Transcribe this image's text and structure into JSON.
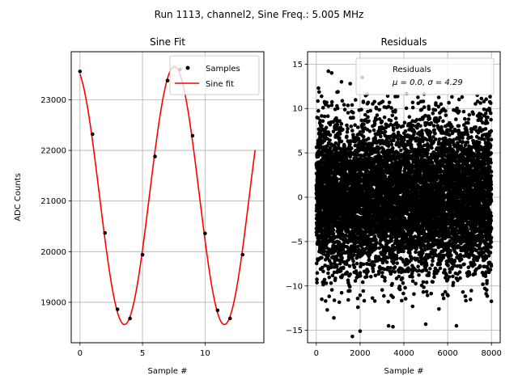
{
  "suptitle": "Run 1113, channel2, Sine Freq.: 5.005 MHz",
  "chart_data": [
    {
      "type": "scatter+line",
      "title": "Sine Fit",
      "xlabel": "Sample #",
      "ylabel": "ADC Counts",
      "xlim": [
        -0.7,
        14.7
      ],
      "ylim": [
        18200,
        23950
      ],
      "xticks": [
        0,
        5,
        10
      ],
      "yticks": [
        19000,
        20000,
        21000,
        22000,
        23000
      ],
      "grid": true,
      "legend_position": "top-right",
      "series": [
        {
          "name": "Samples",
          "kind": "scatter",
          "color": "#000000",
          "x": [
            0,
            1,
            2,
            3,
            4,
            5,
            6,
            7,
            8,
            9,
            10,
            11,
            12,
            13
          ],
          "y": [
            23560,
            22320,
            20370,
            18860,
            18680,
            19940,
            21880,
            23380,
            23600,
            22290,
            20360,
            18840,
            18680,
            19940
          ]
        },
        {
          "name": "Sine fit",
          "kind": "line",
          "color": "#ff0000",
          "model": {
            "offset": 21110,
            "amplitude": 2550,
            "period_samples": 7.99,
            "peak_at_sample": 7.55,
            "x_range": [
              0,
              14
            ]
          }
        }
      ]
    },
    {
      "type": "scatter",
      "title": "Residuals",
      "xlabel": "Sample #",
      "ylabel": "",
      "xlim": [
        -400,
        8400
      ],
      "ylim": [
        -16.4,
        16.4
      ],
      "xticks": [
        0,
        2000,
        4000,
        6000,
        8000
      ],
      "yticks": [
        -15,
        -10,
        -5,
        0,
        5,
        10,
        15
      ],
      "grid": true,
      "legend_position": "top-right",
      "legend_line1": "Residuals",
      "legend_line2": "μ = 0.0, σ = 4.29",
      "series": [
        {
          "name": "Residuals",
          "color": "#000000",
          "n_points": 8000,
          "x_range": [
            0,
            7999
          ],
          "mean": 0.0,
          "sigma": 4.29,
          "outliers": [
            {
              "x": 550,
              "y": 14.2
            },
            {
              "x": 700,
              "y": 14.0
            },
            {
              "x": 2100,
              "y": 13.5
            },
            {
              "x": 1150,
              "y": 13.0
            },
            {
              "x": 1550,
              "y": 12.8
            },
            {
              "x": 100,
              "y": 12.3
            },
            {
              "x": 250,
              "y": -11.5
            },
            {
              "x": 500,
              "y": -12.7
            },
            {
              "x": 800,
              "y": -13.6
            },
            {
              "x": 1650,
              "y": -15.7
            },
            {
              "x": 2000,
              "y": -15.1
            },
            {
              "x": 3300,
              "y": -14.5
            },
            {
              "x": 3500,
              "y": -14.6
            },
            {
              "x": 5000,
              "y": -14.3
            },
            {
              "x": 6400,
              "y": -14.5
            },
            {
              "x": 5600,
              "y": -12.6
            },
            {
              "x": 1900,
              "y": -12.4
            },
            {
              "x": 4400,
              "y": -12.3
            }
          ]
        }
      ]
    }
  ]
}
